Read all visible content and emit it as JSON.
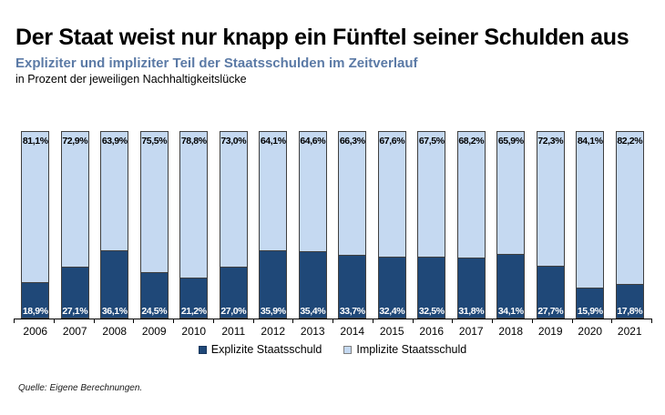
{
  "header": {
    "title": "Der Staat weist nur knapp ein Fünftel seiner Schulden aus",
    "subtitle": "Expliziter und impliziter Teil der Staatsschulden im Zeitverlauf",
    "unit_line": "in Prozent der jeweiligen Nachhaltigkeitslücke"
  },
  "chart_data": {
    "type": "bar",
    "stacked": true,
    "percent_stacked": true,
    "title": "Expliziter und impliziter Teil der Staatsschulden im Zeitverlauf",
    "xlabel": "",
    "ylabel": "in Prozent der jeweiligen Nachhaltigkeitslücke",
    "ylim": [
      0,
      100
    ],
    "grid": false,
    "legend_position": "bottom",
    "value_labels": "inside-bar-ends",
    "categories": [
      "2006",
      "2007",
      "2008",
      "2009",
      "2010",
      "2011",
      "2012",
      "2013",
      "2014",
      "2015",
      "2016",
      "2017",
      "2018",
      "2019",
      "2020",
      "2021"
    ],
    "series": [
      {
        "name": "Explizite Staatsschuld",
        "color": "#1F4878",
        "label_color": "#FFFFFF",
        "values": [
          18.9,
          27.1,
          36.1,
          24.5,
          21.2,
          27.0,
          35.9,
          35.4,
          33.7,
          32.4,
          32.5,
          31.8,
          34.1,
          27.7,
          15.9,
          17.8
        ],
        "labels": [
          "18,9%",
          "27,1%",
          "36,1%",
          "24,5%",
          "21,2%",
          "27,0%",
          "35,9%",
          "35,4%",
          "33,7%",
          "32,4%",
          "32,5%",
          "31,8%",
          "34,1%",
          "27,7%",
          "15,9%",
          "17,8%"
        ]
      },
      {
        "name": "Implizite Staatsschuld",
        "color": "#C5D9F1",
        "label_color": "#000000",
        "values": [
          81.1,
          72.9,
          63.9,
          75.5,
          78.8,
          73.0,
          64.1,
          64.6,
          66.3,
          67.6,
          67.5,
          68.2,
          65.9,
          72.3,
          84.1,
          82.2
        ],
        "labels": [
          "81,1%",
          "72,9%",
          "63,9%",
          "75,5%",
          "78,8%",
          "73,0%",
          "64,1%",
          "64,6%",
          "66,3%",
          "67,6%",
          "67,5%",
          "68,2%",
          "65,9%",
          "72,3%",
          "84,1%",
          "82,2%"
        ]
      }
    ]
  },
  "colors": {
    "explicit_fill": "#1F4878",
    "implicit_fill": "#C5D9F1",
    "bar_border": "#404040",
    "subtitle_text": "#5B7AA6",
    "axis": "#000000"
  },
  "footer": {
    "source": "Quelle: Eigene Berechnungen."
  }
}
